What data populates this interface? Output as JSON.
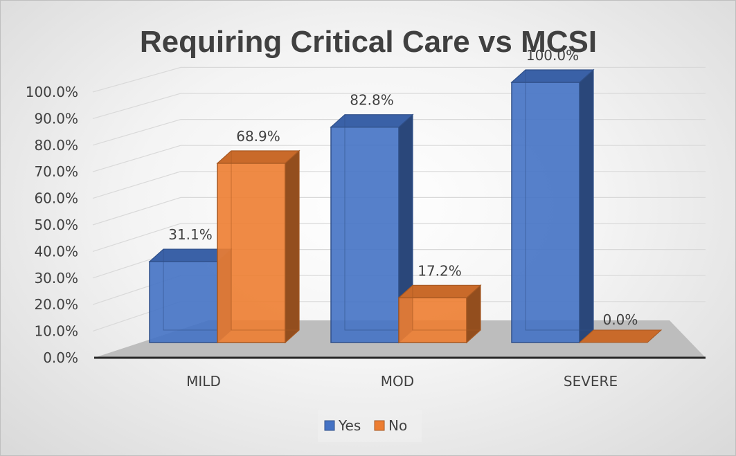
{
  "chart_data": {
    "type": "bar",
    "style": "3d-clustered-column",
    "title": "Requiring Critical Care vs MCSI",
    "xlabel": "",
    "ylabel": "",
    "categories": [
      "MILD",
      "MOD",
      "SEVERE"
    ],
    "series": [
      {
        "name": "Yes",
        "values": [
          31.1,
          82.8,
          100.0
        ],
        "color": "#4472c4"
      },
      {
        "name": "No",
        "values": [
          68.9,
          17.2,
          0.0
        ],
        "color": "#ed7d31"
      }
    ],
    "data_labels": [
      [
        "31.1%",
        "82.8%",
        "100.0%"
      ],
      [
        "68.9%",
        "17.2%",
        "0.0%"
      ]
    ],
    "ylim": [
      0,
      100
    ],
    "y_ticks": [
      "0.0%",
      "10.0%",
      "20.0%",
      "30.0%",
      "40.0%",
      "50.0%",
      "60.0%",
      "70.0%",
      "80.0%",
      "90.0%",
      "100.0%"
    ],
    "grid": true,
    "legend": "bottom"
  }
}
